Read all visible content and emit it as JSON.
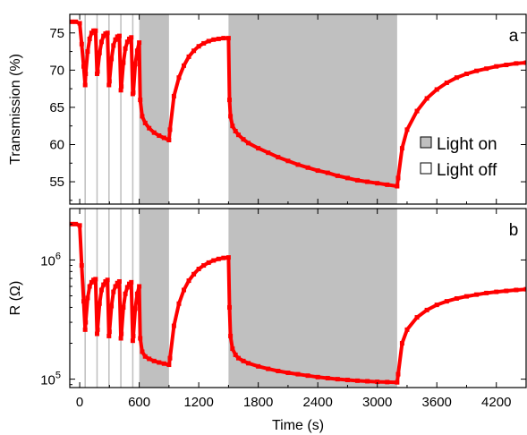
{
  "chart_data": [
    {
      "type": "line",
      "panel_label": "a",
      "ylabel": "Transmission (%)",
      "xlabel": "",
      "xlim": [
        -100,
        4500
      ],
      "ylim": [
        52,
        77.5
      ],
      "yticks": [
        55,
        60,
        65,
        70,
        75
      ],
      "ytick_labels": [
        "55",
        "60",
        "65",
        "70",
        "75"
      ],
      "xticks": [
        0,
        600,
        1200,
        1800,
        2400,
        3000,
        3600,
        4200
      ],
      "xtick_labels": [],
      "grid": false,
      "series_color": "#ff0000",
      "light_on_color": "#c0c0c0",
      "light_on_intervals": [
        [
          48,
          62
        ],
        [
          168,
          182
        ],
        [
          288,
          302
        ],
        [
          408,
          422
        ],
        [
          528,
          542
        ],
        [
          600,
          900
        ],
        [
          1500,
          3200
        ]
      ],
      "legend": {
        "position": "right-bottom",
        "entries": [
          {
            "label": "Light on",
            "fill": "#c0c0c0"
          },
          {
            "label": "Light off",
            "fill": "#ffffff"
          }
        ]
      },
      "series": [
        {
          "x": [
            -80,
            -40,
            0,
            20,
            40,
            55,
            60,
            80,
            100,
            120,
            140,
            160,
            175,
            180,
            200,
            220,
            240,
            260,
            280,
            295,
            300,
            320,
            340,
            360,
            380,
            400,
            415,
            420,
            440,
            460,
            480,
            500,
            520,
            535,
            540,
            560,
            580,
            600,
            610,
            630,
            660,
            700,
            750,
            800,
            850,
            900,
            910,
            950,
            1000,
            1050,
            1100,
            1150,
            1200,
            1250,
            1300,
            1350,
            1400,
            1450,
            1500,
            1510,
            1520,
            1540,
            1570,
            1600,
            1650,
            1700,
            1800,
            1900,
            2000,
            2100,
            2200,
            2300,
            2400,
            2500,
            2600,
            2700,
            2800,
            2900,
            3000,
            3100,
            3200,
            3210,
            3250,
            3300,
            3400,
            3500,
            3600,
            3700,
            3800,
            3900,
            4000,
            4100,
            4200,
            4300,
            4400,
            4500
          ],
          "y": [
            76.5,
            76.5,
            76.3,
            73.5,
            70.5,
            68.0,
            69.5,
            72.5,
            74.2,
            75.0,
            75.3,
            75.3,
            69.5,
            69.8,
            72.3,
            73.8,
            74.6,
            74.9,
            75.0,
            68.0,
            68.5,
            71.5,
            73.3,
            74.1,
            74.5,
            74.6,
            67.3,
            67.8,
            71.0,
            72.9,
            73.8,
            74.2,
            74.4,
            66.8,
            67.0,
            70.8,
            72.6,
            73.7,
            66.0,
            63.8,
            62.9,
            62.2,
            61.6,
            61.2,
            60.9,
            60.6,
            62.0,
            66.5,
            69.0,
            70.6,
            71.8,
            72.6,
            73.2,
            73.6,
            73.9,
            74.1,
            74.2,
            74.3,
            74.3,
            66.0,
            63.8,
            62.5,
            61.8,
            61.3,
            60.7,
            60.2,
            59.5,
            58.9,
            58.3,
            57.8,
            57.3,
            56.9,
            56.5,
            56.2,
            55.8,
            55.5,
            55.2,
            55.0,
            54.8,
            54.6,
            54.4,
            55.5,
            59.5,
            62.0,
            64.5,
            66.2,
            67.4,
            68.3,
            69.0,
            69.5,
            69.9,
            70.2,
            70.5,
            70.7,
            70.9,
            71.0
          ]
        }
      ]
    },
    {
      "type": "line",
      "panel_label": "b",
      "ylabel": "R (Ω)",
      "xlabel": "Time (s)",
      "yscale": "log",
      "xlim": [
        -100,
        4500
      ],
      "ylim": [
        85000,
        2700000
      ],
      "yticks": [
        100000,
        1000000
      ],
      "ytick_labels": [
        {
          "base": "10",
          "exp": "5"
        },
        {
          "base": "10",
          "exp": "6"
        }
      ],
      "xticks": [
        0,
        600,
        1200,
        1800,
        2400,
        3000,
        3600,
        4200
      ],
      "xtick_labels": [
        "0",
        "600",
        "1200",
        "1800",
        "2400",
        "3000",
        "3600",
        "4200"
      ],
      "grid": false,
      "series_color": "#ff0000",
      "light_on_color": "#c0c0c0",
      "light_on_intervals": [
        [
          48,
          62
        ],
        [
          168,
          182
        ],
        [
          288,
          302
        ],
        [
          408,
          422
        ],
        [
          528,
          542
        ],
        [
          600,
          900
        ],
        [
          1500,
          3200
        ]
      ],
      "series": [
        {
          "x": [
            -80,
            -40,
            0,
            20,
            40,
            55,
            60,
            80,
            100,
            120,
            140,
            160,
            175,
            180,
            200,
            220,
            240,
            260,
            280,
            295,
            300,
            320,
            340,
            360,
            380,
            400,
            415,
            420,
            440,
            460,
            480,
            500,
            520,
            535,
            540,
            560,
            580,
            600,
            610,
            630,
            660,
            700,
            750,
            800,
            850,
            900,
            910,
            950,
            1000,
            1050,
            1100,
            1150,
            1200,
            1250,
            1300,
            1350,
            1400,
            1450,
            1500,
            1510,
            1520,
            1540,
            1570,
            1600,
            1650,
            1700,
            1800,
            1900,
            2000,
            2100,
            2200,
            2300,
            2400,
            2500,
            2600,
            2700,
            2800,
            2900,
            3000,
            3100,
            3200,
            3210,
            3250,
            3300,
            3400,
            3500,
            3600,
            3700,
            3800,
            3900,
            4000,
            4100,
            4200,
            4300,
            4400,
            4500
          ],
          "y": [
            2000000,
            2000000,
            1950000,
            900000,
            450000,
            260000,
            300000,
            480000,
            600000,
            650000,
            680000,
            690000,
            240000,
            260000,
            430000,
            560000,
            620000,
            660000,
            680000,
            230000,
            250000,
            410000,
            540000,
            600000,
            640000,
            660000,
            220000,
            240000,
            400000,
            520000,
            590000,
            630000,
            650000,
            210000,
            230000,
            390000,
            520000,
            600000,
            220000,
            170000,
            155000,
            148000,
            142000,
            138000,
            135000,
            132000,
            150000,
            280000,
            430000,
            560000,
            670000,
            760000,
            840000,
            900000,
            950000,
            990000,
            1020000,
            1040000,
            1050000,
            400000,
            230000,
            180000,
            160000,
            150000,
            142000,
            136000,
            128000,
            122000,
            117000,
            113000,
            110000,
            107000,
            104000,
            102000,
            100000,
            98500,
            97000,
            96000,
            95000,
            94500,
            94000,
            110000,
            200000,
            260000,
            330000,
            380000,
            420000,
            450000,
            475000,
            495000,
            512000,
            528000,
            540000,
            550000,
            560000,
            568000
          ]
        }
      ]
    }
  ]
}
